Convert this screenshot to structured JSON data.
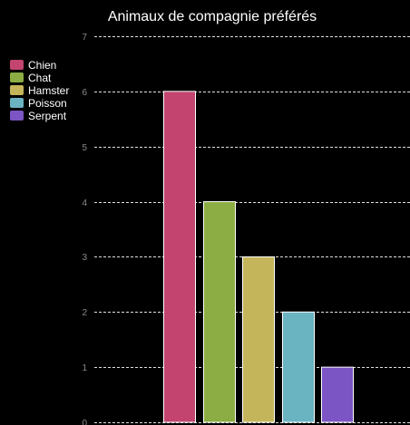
{
  "chart_data": {
    "type": "bar",
    "title": "Animaux de compagnie préférés",
    "xlabel": "",
    "ylabel": "",
    "categories": [
      "Chien",
      "Chat",
      "Hamster",
      "Poisson",
      "Serpent"
    ],
    "values": [
      6,
      4,
      3,
      2,
      1
    ],
    "colors": [
      "#c2446f",
      "#8bad43",
      "#c4b55b",
      "#6ab3c1",
      "#7c55c4"
    ],
    "ylim": [
      0,
      7
    ],
    "yticks": [
      "0",
      "1",
      "2",
      "3",
      "4",
      "5",
      "6",
      "7"
    ],
    "grid": true,
    "grid_color": "#e0e0e0",
    "background": "#000000",
    "legend_position": "top-left"
  }
}
